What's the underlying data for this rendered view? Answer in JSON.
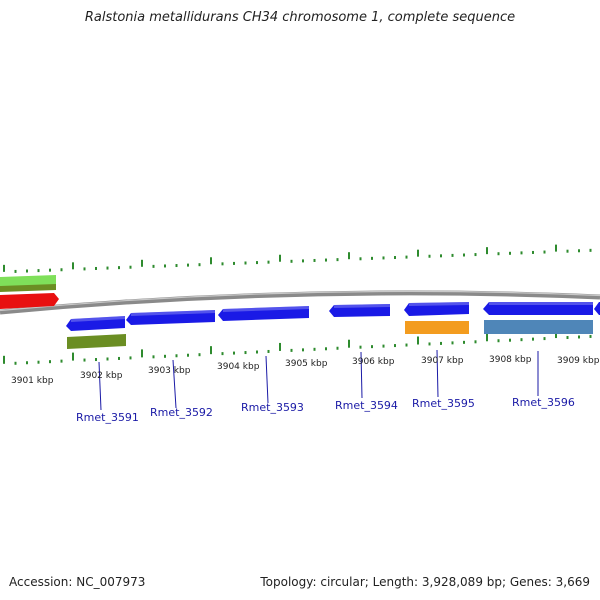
{
  "title": "Ralstonia metallidurans CH34 chromosome 1, complete sequence",
  "accession_label": "Accession: NC_007973",
  "topology_label": "Topology: circular; Length: 3,928,089 bp; Genes: 3,669",
  "colors": {
    "backbone": "#8a8a8a",
    "tick": "#2e8b2e",
    "cds_blue": "#1a1ae6",
    "gene_green": "#6b8e23",
    "light_green": "#7fe05a",
    "red": "#e81010",
    "orange": "#f39c1f",
    "steel_blue": "#4f86b8",
    "label": "#1a1aa6"
  },
  "kbp_labels": [
    "3901 kbp",
    "3902 kbp",
    "3903 kbp",
    "3904 kbp",
    "3905 kbp",
    "3906 kbp",
    "3907 kbp",
    "3908 kbp",
    "3909 kbp"
  ],
  "gene_labels": [
    "Rmet_3591",
    "Rmet_3592",
    "Rmet_3593",
    "Rmet_3594",
    "Rmet_3595",
    "Rmet_3596"
  ]
}
